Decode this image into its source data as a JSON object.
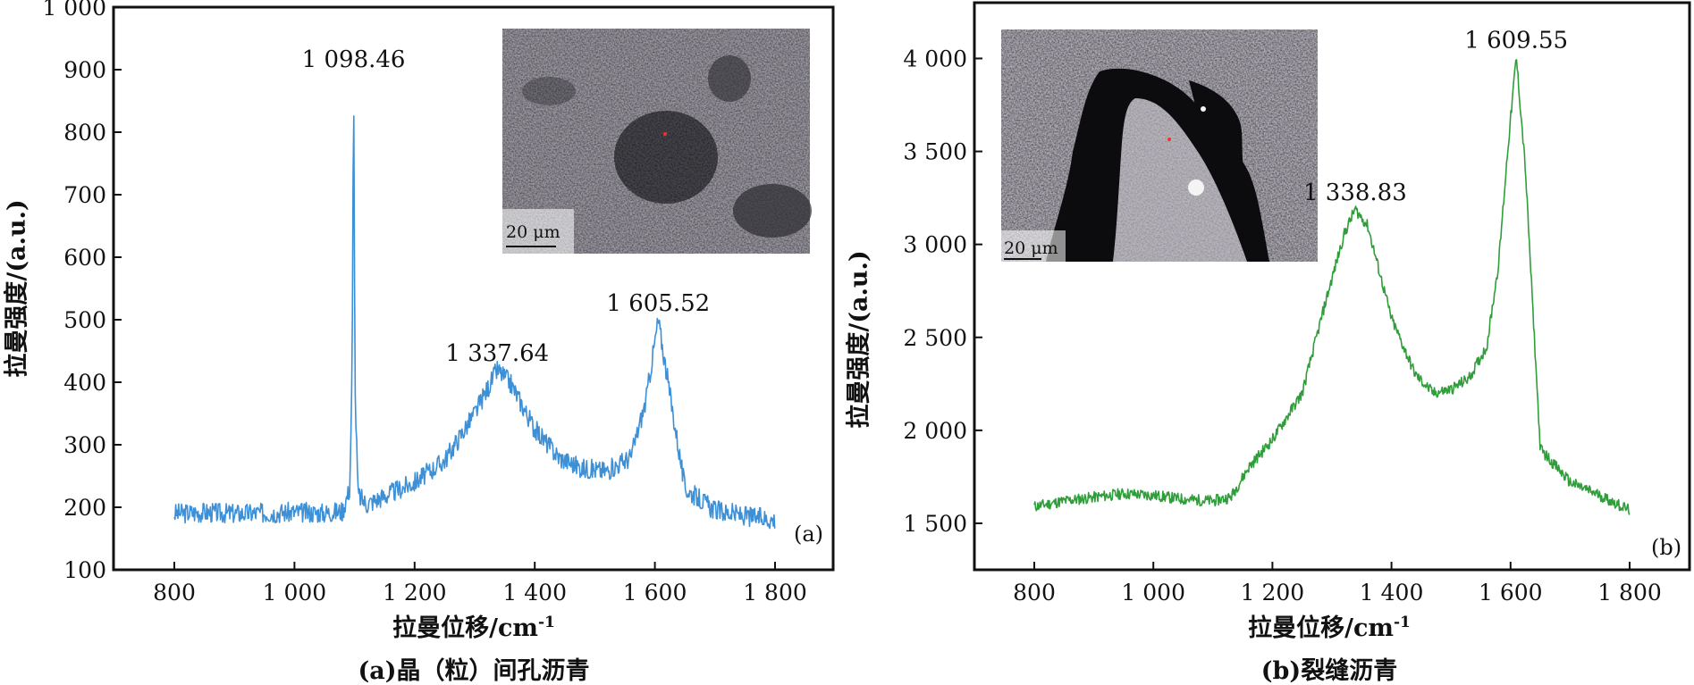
{
  "chart_data": [
    {
      "type": "line",
      "panel_tag": "(a)",
      "caption": "(a)晶（粒）间孔沥青",
      "xlabel": "拉曼位移/cm",
      "xlabel_sup": "-1",
      "ylabel": "拉曼强度/(a.u.)",
      "xlim": [
        700,
        1900
      ],
      "ylim": [
        100,
        1000
      ],
      "x_ticks": [
        800,
        1000,
        1200,
        1400,
        1600,
        1800
      ],
      "x_tick_labels": [
        "800",
        "1 000",
        "1 200",
        "1 400",
        "1 600",
        "1 800"
      ],
      "y_ticks": [
        100,
        200,
        300,
        400,
        500,
        600,
        700,
        800,
        900,
        1000
      ],
      "y_tick_labels": [
        "100",
        "200",
        "300",
        "400",
        "500",
        "600",
        "700",
        "800",
        "900",
        "1 000"
      ],
      "color": "#3d8fd6",
      "grid": false,
      "series": [
        {
          "x": [
            800,
            850,
            900,
            950,
            1000,
            1050,
            1080,
            1092,
            1096,
            1098.46,
            1101,
            1106,
            1120,
            1150,
            1200,
            1250,
            1300,
            1337.64,
            1360,
            1400,
            1440,
            1480,
            1520,
            1560,
            1585,
            1605.52,
            1625,
            1650,
            1700,
            1750,
            1800
          ],
          "y": [
            190,
            192,
            190,
            191,
            192,
            191,
            194,
            230,
            420,
            890,
            380,
            220,
            205,
            218,
            240,
            275,
            350,
            420,
            398,
            325,
            280,
            262,
            258,
            280,
            370,
            500,
            380,
            230,
            195,
            186,
            180
          ]
        }
      ],
      "peaks": [
        {
          "x": 1098.46,
          "y": 890,
          "label": "1 098.46"
        },
        {
          "x": 1337.64,
          "y": 420,
          "label": "1 337.64"
        },
        {
          "x": 1605.52,
          "y": 500,
          "label": "1 605.52"
        }
      ],
      "inset": {
        "scale_label": "20 μm"
      }
    },
    {
      "type": "line",
      "panel_tag": "(b)",
      "caption": "(b)裂缝沥青",
      "xlabel": "拉曼位移/cm",
      "xlabel_sup": "-1",
      "ylabel": "拉曼强度/(a.u.)",
      "xlim": [
        700,
        1900
      ],
      "ylim": [
        1250,
        4300
      ],
      "x_ticks": [
        800,
        1000,
        1200,
        1400,
        1600,
        1800
      ],
      "x_tick_labels": [
        "800",
        "1 000",
        "1 200",
        "1 400",
        "1 600",
        "1 800"
      ],
      "y_ticks": [
        1500,
        2000,
        2500,
        3000,
        3500,
        4000
      ],
      "y_tick_labels": [
        "1 500",
        "2 000",
        "2 500",
        "3 000",
        "3 500",
        "4 000"
      ],
      "color": "#2f9e3a",
      "grid": false,
      "series": [
        {
          "x": [
            800,
            850,
            900,
            950,
            1000,
            1050,
            1100,
            1130,
            1160,
            1200,
            1250,
            1290,
            1320,
            1338.83,
            1360,
            1400,
            1440,
            1470,
            1500,
            1530,
            1560,
            1580,
            1595,
            1609.55,
            1625,
            1650,
            1700,
            1750,
            1800
          ],
          "y": [
            1590,
            1620,
            1640,
            1660,
            1650,
            1630,
            1620,
            1640,
            1800,
            1950,
            2200,
            2700,
            3050,
            3190,
            3100,
            2600,
            2300,
            2200,
            2220,
            2280,
            2450,
            2900,
            3500,
            4010,
            3400,
            1900,
            1720,
            1650,
            1570
          ]
        }
      ],
      "peaks": [
        {
          "x": 1338.83,
          "y": 3190,
          "label": "1 338.83"
        },
        {
          "x": 1609.55,
          "y": 4010,
          "label": "1 609.55"
        }
      ],
      "inset": {
        "scale_label": "20 μm"
      }
    }
  ]
}
